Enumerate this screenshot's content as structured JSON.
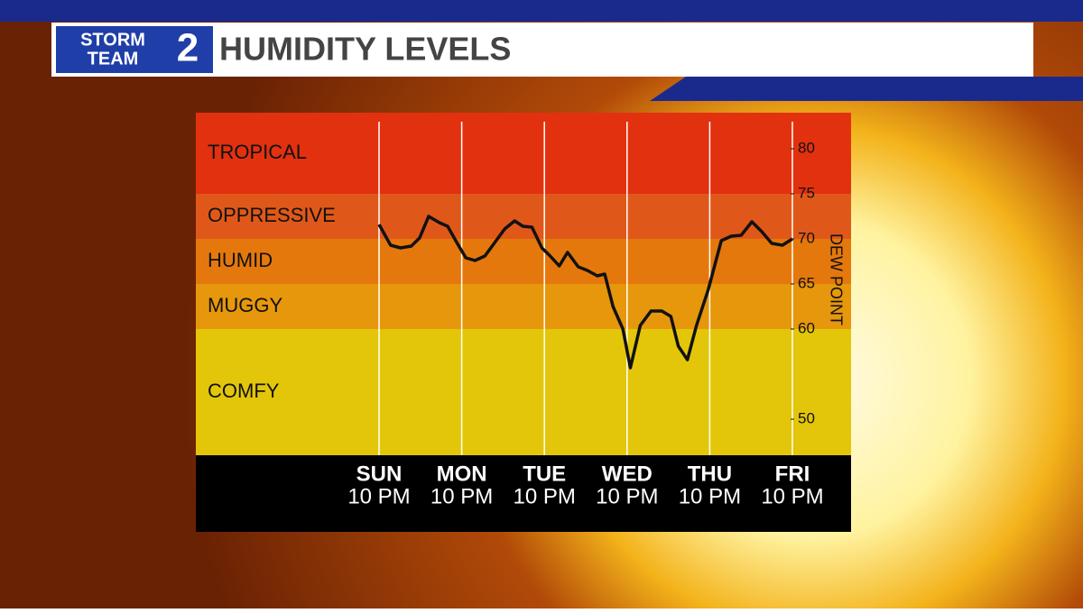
{
  "header": {
    "logo": [
      "STORM",
      "TEAM",
      "2"
    ]
  },
  "chart_data": {
    "type": "line",
    "title": "HUMIDITY LEVELS",
    "y_label": "DEW POINT",
    "categories": [
      "SUN",
      "MON",
      "TUE",
      "WED",
      "THU",
      "FRI"
    ],
    "category_sublabels": [
      "10 PM",
      "10 PM",
      "10 PM",
      "10 PM",
      "10 PM",
      "10 PM"
    ],
    "xlim": [
      0,
      5
    ],
    "ylim": [
      46,
      84
    ],
    "yticks": [
      50,
      60,
      65,
      70,
      75,
      80
    ],
    "bands": [
      {
        "name": "TROPICAL",
        "from": 75,
        "to": 84,
        "color": "#e2310f"
      },
      {
        "name": "OPPRESSIVE",
        "from": 70,
        "to": 75,
        "color": "#e05819"
      },
      {
        "name": "HUMID",
        "from": 65,
        "to": 70,
        "color": "#e5780c"
      },
      {
        "name": "MUGGY",
        "from": 60,
        "to": 65,
        "color": "#e6970c"
      },
      {
        "name": "COMFY",
        "from": 46,
        "to": 60,
        "color": "#e3c60a"
      }
    ],
    "series": [
      {
        "color": "#111111",
        "x": [
          0,
          0.14,
          0.26,
          0.39,
          0.49,
          0.6,
          0.73,
          0.83,
          0.94,
          1.05,
          1.16,
          1.28,
          1.4,
          1.52,
          1.64,
          1.74,
          1.85,
          1.97,
          2.07,
          2.18,
          2.28,
          2.41,
          2.52,
          2.64,
          2.73,
          2.83,
          2.95,
          3.04,
          3.16,
          3.29,
          3.42,
          3.53,
          3.62,
          3.73,
          3.84,
          3.98,
          4.14,
          4.26,
          4.38,
          4.51,
          4.63,
          4.75,
          4.88,
          5
        ],
        "values": [
          71.6,
          69.3,
          69,
          69.2,
          70.1,
          72.5,
          71.8,
          71.4,
          69.6,
          67.9,
          67.6,
          68.1,
          69.6,
          71.1,
          72,
          71.4,
          71.3,
          69,
          68.1,
          67,
          68.5,
          66.9,
          66.5,
          65.9,
          66.1,
          62.5,
          60,
          55.7,
          60.4,
          62,
          62,
          61.4,
          58.1,
          56.6,
          60.4,
          64.3,
          69.8,
          70.3,
          70.4,
          71.9,
          70.8,
          69.5,
          69.3,
          70
        ]
      }
    ]
  }
}
